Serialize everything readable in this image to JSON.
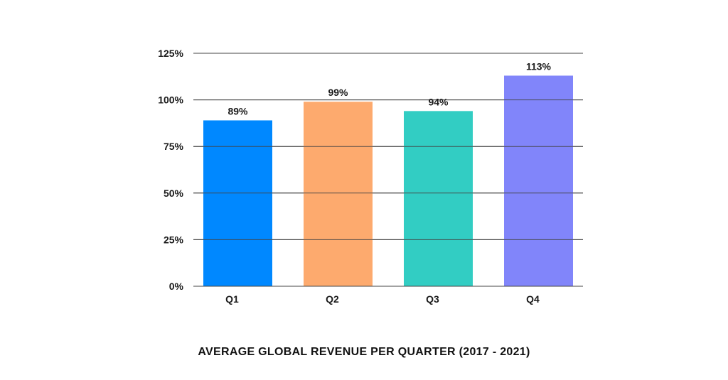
{
  "chart_data": {
    "type": "bar",
    "title": "AVERAGE GLOBAL REVENUE PER QUARTER (2017 - 2021)",
    "xlabel": "",
    "ylabel": "",
    "categories": [
      "Q1",
      "Q2",
      "Q3",
      "Q4"
    ],
    "values": [
      89,
      99,
      94,
      113
    ],
    "data_labels": [
      "89%",
      "99%",
      "94%",
      "113%"
    ],
    "bar_colors": [
      "#0088ff",
      "#fdaa6e",
      "#32cdc3",
      "#8185fa"
    ],
    "ylim": [
      0,
      125
    ],
    "yticks": [
      0,
      25,
      50,
      75,
      100,
      125
    ],
    "ytick_labels": [
      "0%",
      "25%",
      "50%",
      "75%",
      "100%",
      "125%"
    ],
    "grid": true,
    "legend": "none"
  }
}
